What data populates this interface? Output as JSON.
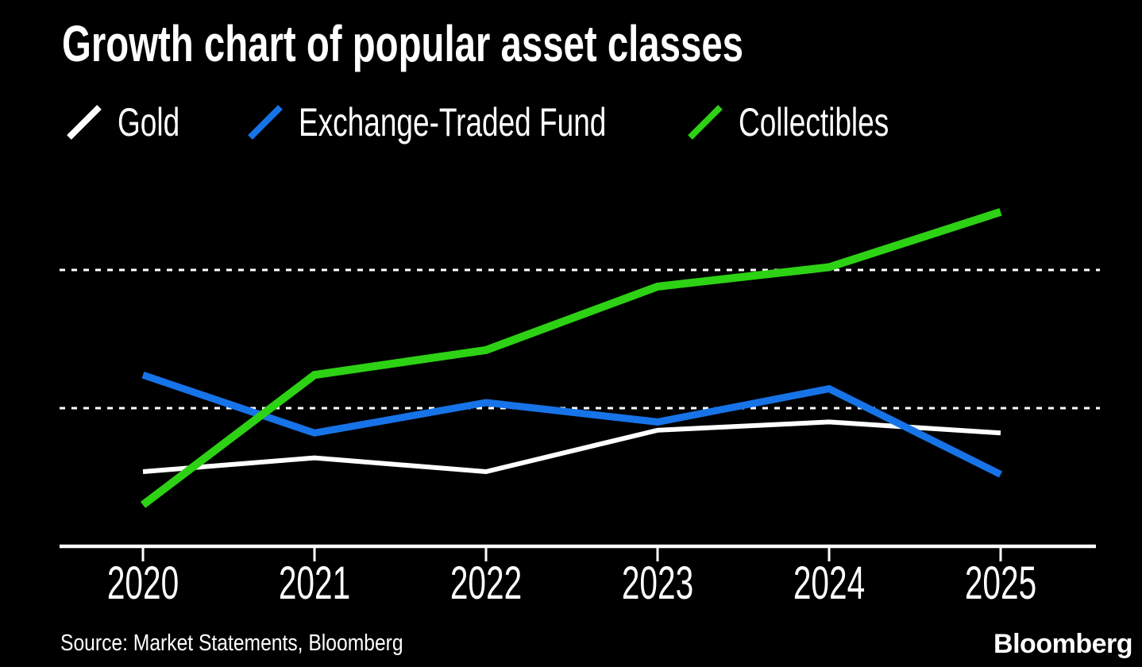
{
  "title": "Growth chart of popular asset classes",
  "source": "Source: Market Statements, Bloomberg",
  "brand": "Bloomberg",
  "colors": {
    "background": "#000000",
    "text": "#ffffff",
    "gridline": "#ffffff",
    "axis": "#ffffff",
    "gold": "#ffffff",
    "etf": "#1773e8",
    "collectibles": "#2dd214"
  },
  "chart_data": {
    "type": "line",
    "title": "Growth chart of popular asset classes",
    "categories": [
      "2020",
      "2021",
      "2022",
      "2023",
      "2024",
      "2025"
    ],
    "series": [
      {
        "name": "Gold",
        "color": "#ffffff",
        "values": [
          27,
          32,
          27,
          42,
          45,
          41
        ]
      },
      {
        "name": "Exchange-Traded Fund",
        "color": "#1773e8",
        "values": [
          62,
          41,
          52,
          45,
          57,
          26
        ]
      },
      {
        "name": "Collectibles",
        "color": "#2dd214",
        "values": [
          15,
          62,
          71,
          94,
          101,
          121
        ]
      }
    ],
    "xlabel": "",
    "ylabel": "",
    "ylim": [
      0,
      130
    ],
    "gridlines_y": [
      50,
      100
    ],
    "grid_style": "dotted",
    "legend_position": "top",
    "y_axis_labels_visible": false,
    "x_axis_visible": true
  }
}
